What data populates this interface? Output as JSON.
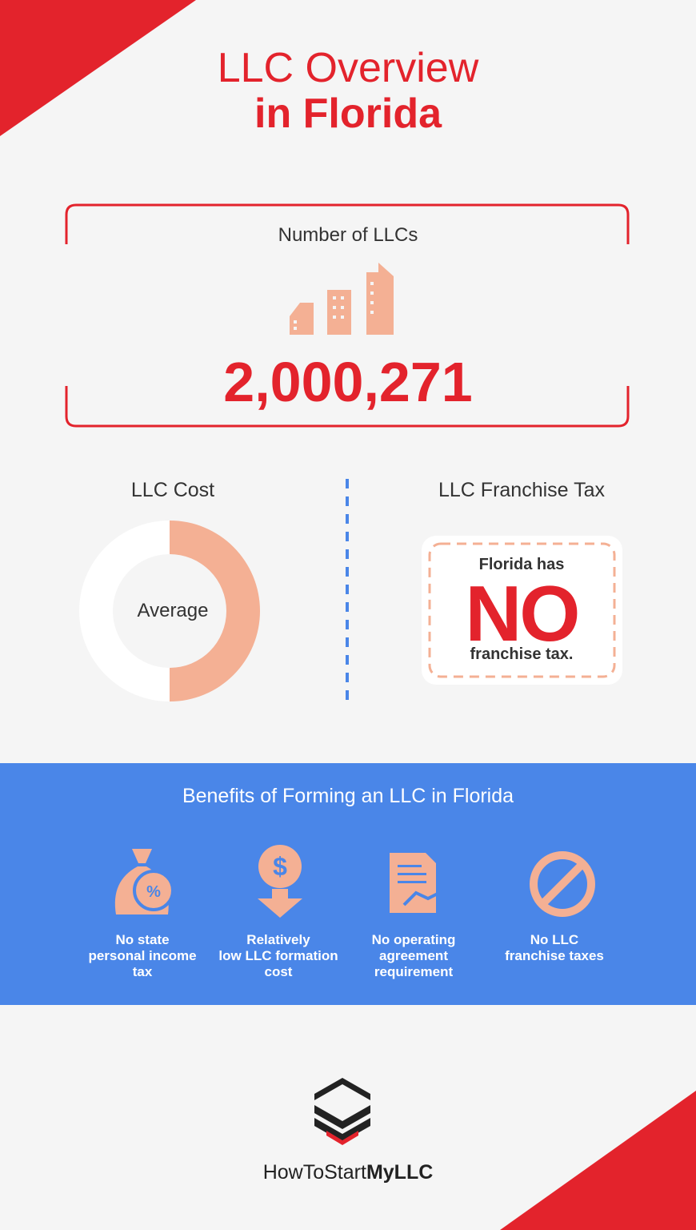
{
  "header": {
    "title_line1": "LLC Overview",
    "title_line2": "in Florida"
  },
  "llc_count": {
    "label": "Number of LLCs",
    "value": "2,000,271"
  },
  "llc_cost": {
    "label": "LLC Cost",
    "center_text": "Average"
  },
  "franchise_tax": {
    "label": "LLC Franchise Tax",
    "line1": "Florida has",
    "big": "NO",
    "line2": "franchise tax."
  },
  "benefits": {
    "title": "Benefits of Forming an LLC in Florida",
    "items": [
      {
        "lines": [
          "No state",
          "personal income",
          "tax"
        ]
      },
      {
        "lines": [
          "Relatively",
          "low LLC formation",
          "cost"
        ]
      },
      {
        "lines": [
          "No operating",
          "agreement",
          "requirement"
        ]
      },
      {
        "lines": [
          "No LLC",
          "franchise taxes"
        ]
      }
    ]
  },
  "footer": {
    "brand_light": "HowToStart",
    "brand_bold": "MyLLC"
  }
}
